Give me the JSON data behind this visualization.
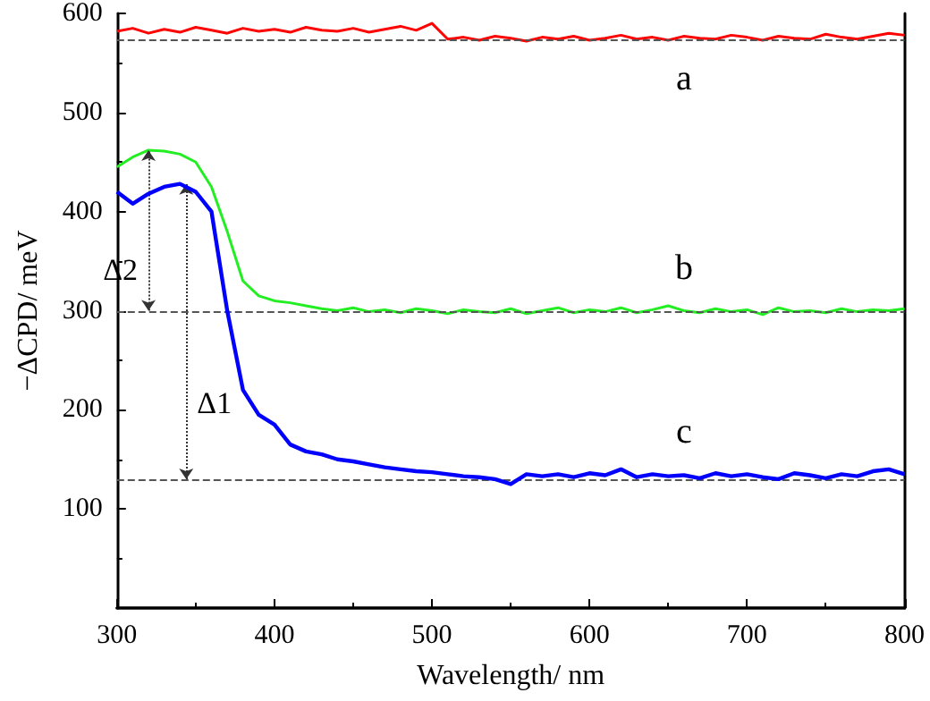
{
  "chart_data": {
    "type": "line",
    "xlabel": "Wavelength/ nm",
    "ylabel": "−ΔCPD/ meV",
    "x": [
      300,
      310,
      320,
      330,
      340,
      350,
      360,
      370,
      380,
      390,
      400,
      410,
      420,
      430,
      440,
      450,
      460,
      470,
      480,
      490,
      500,
      510,
      520,
      530,
      540,
      550,
      560,
      570,
      580,
      590,
      600,
      610,
      620,
      630,
      640,
      650,
      660,
      670,
      680,
      690,
      700,
      710,
      720,
      730,
      740,
      750,
      760,
      770,
      780,
      790,
      800
    ],
    "series": [
      {
        "name": "a",
        "color": "#ff0000",
        "values": [
          582,
          585,
          580,
          584,
          581,
          586,
          583,
          580,
          585,
          582,
          584,
          581,
          586,
          583,
          582,
          585,
          581,
          584,
          587,
          583,
          590,
          574,
          576,
          573,
          577,
          575,
          572,
          576,
          574,
          577,
          573,
          575,
          578,
          574,
          576,
          573,
          577,
          575,
          574,
          578,
          576,
          573,
          577,
          575,
          574,
          579,
          576,
          574,
          577,
          580,
          578
        ]
      },
      {
        "name": "b",
        "color": "#22ee22",
        "values": [
          445,
          455,
          462,
          461,
          458,
          450,
          425,
          380,
          330,
          315,
          310,
          308,
          305,
          302,
          300,
          303,
          299,
          301,
          298,
          302,
          300,
          297,
          301,
          299,
          298,
          302,
          297,
          300,
          303,
          298,
          301,
          299,
          303,
          298,
          301,
          305,
          300,
          298,
          302,
          299,
          301,
          296,
          303,
          299,
          300,
          298,
          302,
          299,
          301,
          300,
          302
        ]
      },
      {
        "name": "c",
        "color": "#0000ff",
        "values": [
          420,
          408,
          418,
          425,
          428,
          420,
          400,
          300,
          220,
          195,
          185,
          165,
          158,
          155,
          150,
          148,
          145,
          142,
          140,
          138,
          137,
          135,
          133,
          132,
          130,
          125,
          135,
          133,
          135,
          132,
          136,
          134,
          140,
          132,
          135,
          133,
          134,
          131,
          136,
          133,
          135,
          132,
          130,
          136,
          134,
          131,
          135,
          133,
          138,
          140,
          135
        ]
      }
    ],
    "xlim": [
      300,
      800
    ],
    "xticks": [
      300,
      400,
      500,
      600,
      700,
      800
    ],
    "ylim": [
      0,
      600
    ],
    "yticks": [
      100,
      200,
      300,
      400,
      500,
      600
    ],
    "ref_lines": [
      {
        "axis": "y",
        "value": 573,
        "color": "#555555",
        "line_style": "dashed"
      },
      {
        "axis": "y",
        "value": 300,
        "color": "#555555",
        "line_style": "dashed"
      },
      {
        "axis": "y",
        "value": 130,
        "color": "#555555",
        "line_style": "dashed"
      }
    ],
    "annotations": [
      "Δ2",
      "Δ1"
    ],
    "grid": false,
    "legend": false,
    "marker": "none",
    "line_style": "solid"
  }
}
